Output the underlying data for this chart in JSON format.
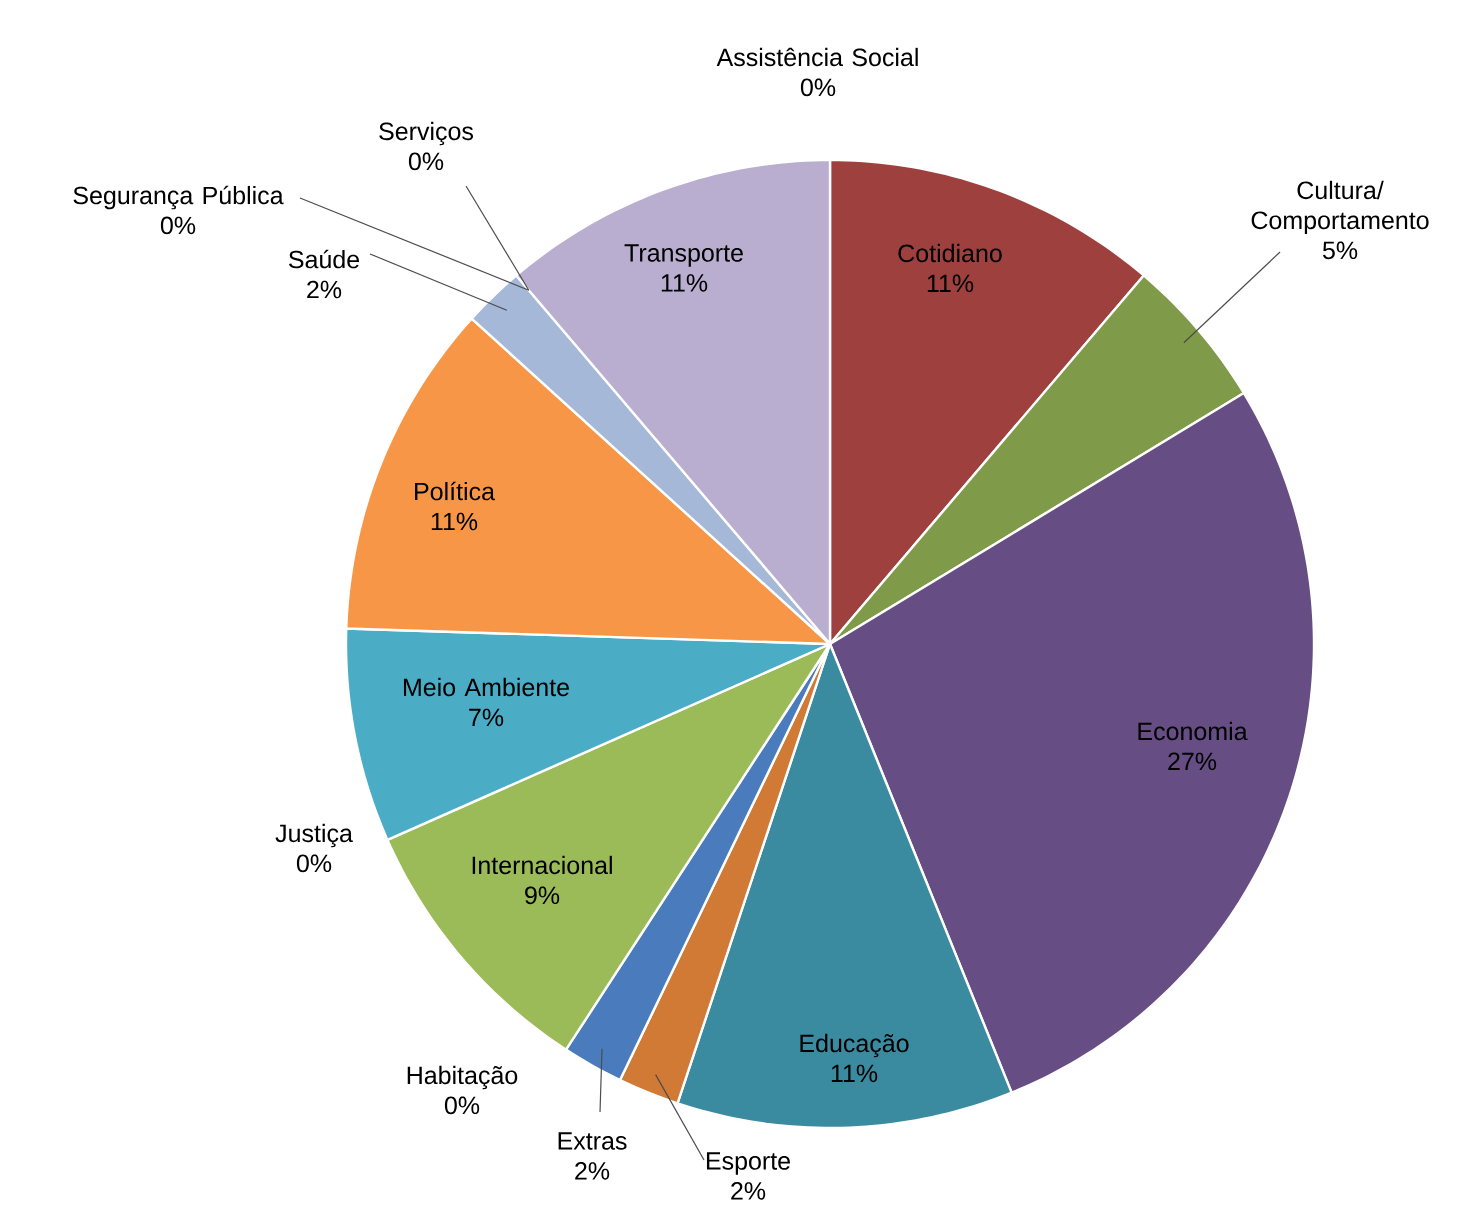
{
  "chart_data": {
    "type": "pie",
    "categories": [
      "Assistência Social",
      "Cotidiano",
      "Cultura/ Comportamento",
      "Economia",
      "Educação",
      "Esporte",
      "Extras",
      "Habitação",
      "Internacional",
      "Justiça",
      "Meio Ambiente",
      "Política",
      "Saúde",
      "Segurança Pública",
      "Serviços",
      "Transporte"
    ],
    "values": [
      0,
      11,
      5,
      27,
      11,
      2,
      2,
      0,
      9,
      0,
      7,
      11,
      2,
      0,
      0,
      11
    ],
    "value_labels": [
      "0%",
      "11%",
      "5%",
      "27%",
      "11%",
      "2%",
      "2%",
      "0%",
      "9%",
      "0%",
      "7%",
      "11%",
      "2%",
      "0%",
      "0%",
      "11%"
    ],
    "colors": [
      "#4f81bd",
      "#9e413e",
      "#7f9a48",
      "#664d84",
      "#3b8ba0",
      "#d07a35",
      "#4a7cbd",
      "#2c4d75",
      "#9bbb59",
      "#772c2a",
      "#4bacc6",
      "#f79646",
      "#a5b8d8",
      "#d99694",
      "#c3d69b",
      "#b9aed0"
    ]
  }
}
